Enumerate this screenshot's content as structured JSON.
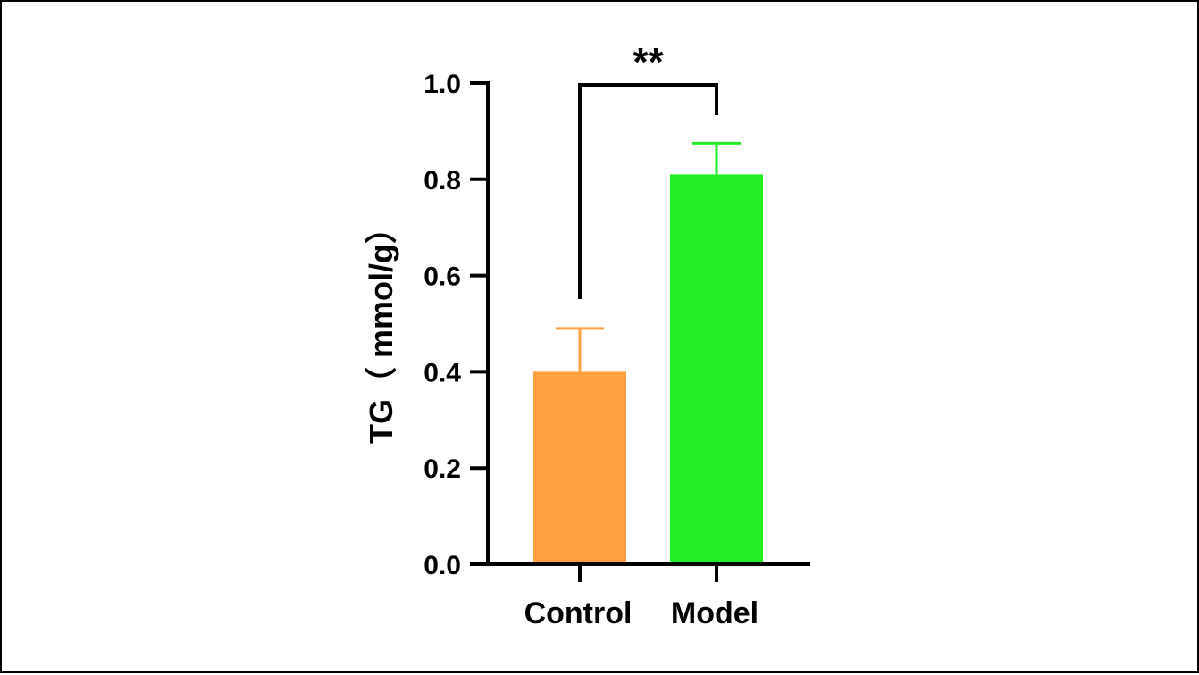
{
  "chart_data": {
    "type": "bar",
    "categories": [
      "Control",
      "Model"
    ],
    "values": [
      0.4,
      0.81
    ],
    "error_plus": [
      0.09,
      0.065
    ],
    "colors": [
      "#FFA040",
      "#22F022"
    ],
    "ylabel": "TG（ mmol/g）",
    "ylim": [
      0,
      1.0
    ],
    "yticks": [
      "0.0",
      "0.2",
      "0.4",
      "0.6",
      "0.8",
      "1.0"
    ],
    "grid": false,
    "legend": "none",
    "annotations": [
      {
        "type": "significance-bracket",
        "between": [
          "Control",
          "Model"
        ],
        "label": "**"
      }
    ]
  }
}
